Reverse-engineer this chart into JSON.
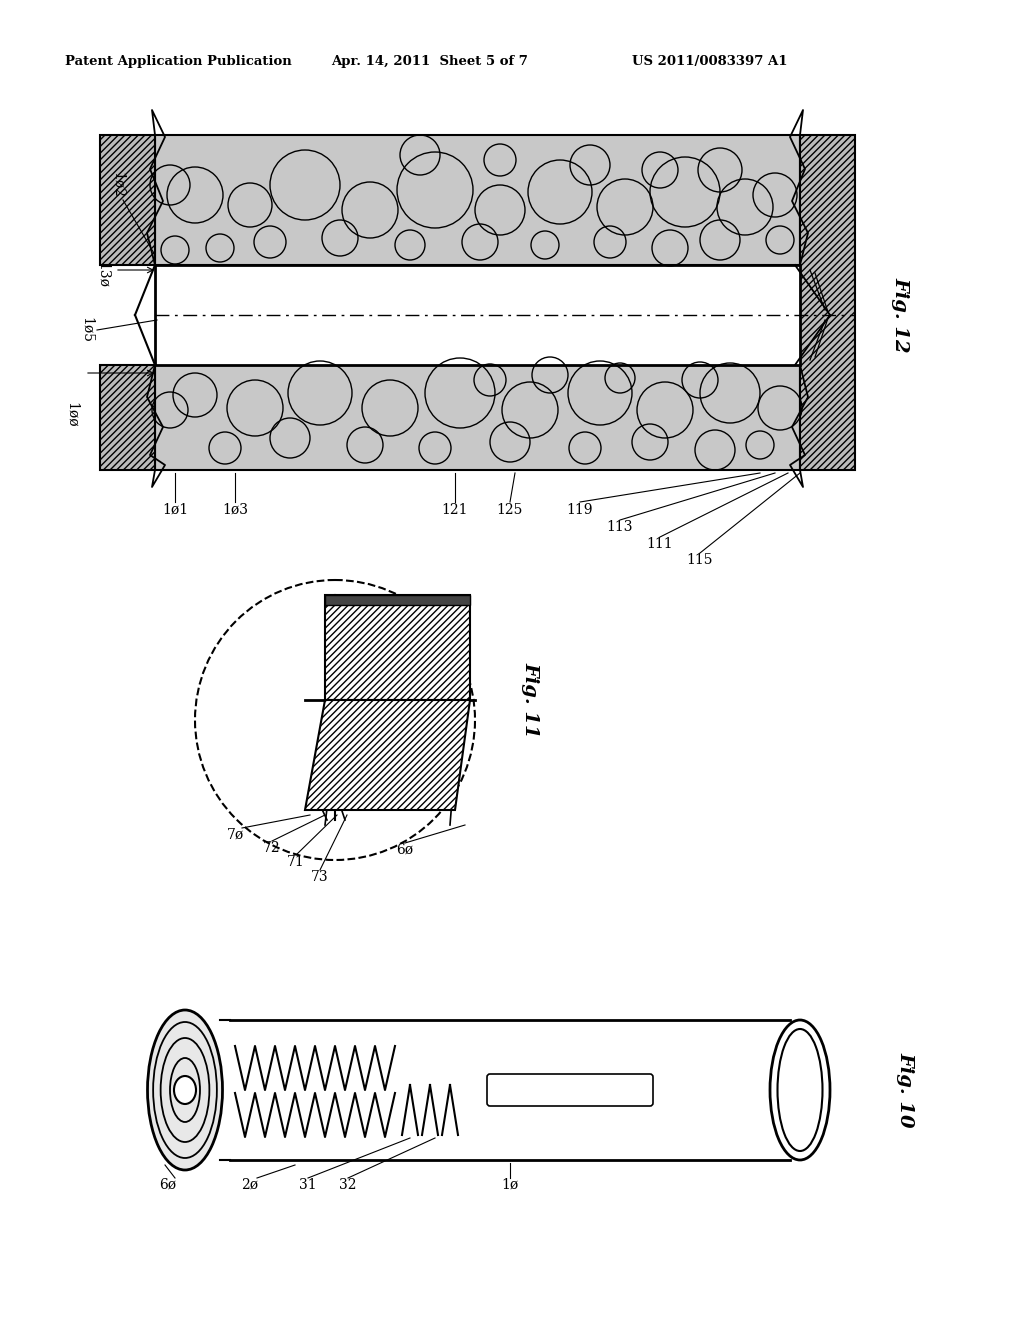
{
  "bg_color": "#ffffff",
  "header_text": "Patent Application Publication",
  "header_date": "Apr. 14, 2011  Sheet 5 of 7",
  "header_patent": "US 2011/0083397 A1",
  "fig12_label": "Fig. 12",
  "fig11_label": "Fig. 11",
  "fig10_label": "Fig. 10",
  "label_color": "#000000",
  "foam_gray": "#c8c8c8",
  "hatch_gray": "#aaaaaa"
}
